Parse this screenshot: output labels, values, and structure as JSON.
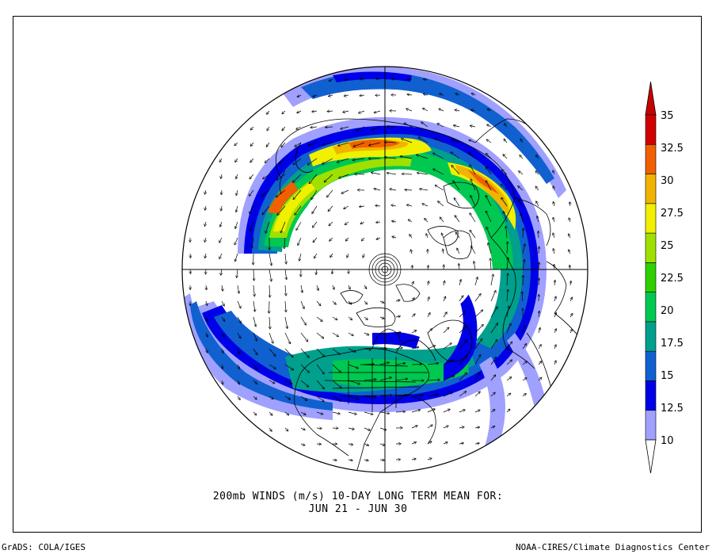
{
  "title": {
    "line1": "200mb WINDS (m/s)   10-DAY LONG TERM MEAN FOR:",
    "line2": "JUN 21 - JUN 30"
  },
  "footer": {
    "left": "GrADS: COLA/IGES",
    "right": "NOAA-CIRES/Climate Diagnostics Center"
  },
  "colorbar": {
    "labels": [
      "10",
      "12.5",
      "15",
      "17.5",
      "20",
      "22.5",
      "25",
      "27.5",
      "30",
      "32.5",
      "35"
    ],
    "colors": [
      "#a0a0ff",
      "#0000e6",
      "#1060d0",
      "#00a08c",
      "#00c850",
      "#30d000",
      "#a0e000",
      "#f0f000",
      "#f0b400",
      "#f06000",
      "#d00000"
    ],
    "under_color": "#ffffff",
    "over_color": "#c80000"
  },
  "palette": {
    "land": "#000000",
    "background": "#ffffff"
  }
}
